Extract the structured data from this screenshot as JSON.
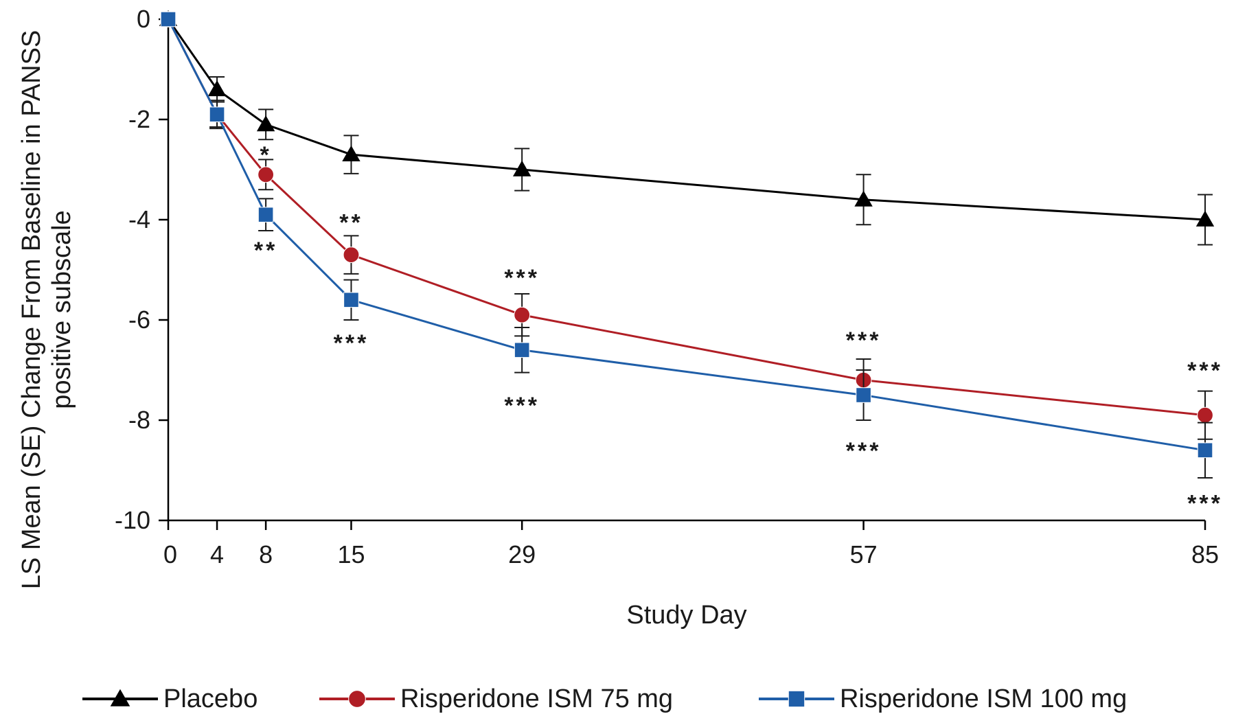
{
  "chart_data": {
    "type": "line",
    "xlabel": "Study Day",
    "ylabel_lines": [
      "LS Mean (SE) Change From Baseline in PANSS",
      "positive subscale"
    ],
    "x": [
      0,
      4,
      8,
      15,
      29,
      57,
      85
    ],
    "x_ticks": [
      "0",
      "4",
      "8",
      "15",
      "29",
      "57",
      "85"
    ],
    "ylim": [
      -10,
      0
    ],
    "y_ticks": [
      "0",
      "-2",
      "-4",
      "-6",
      "-8",
      "-10"
    ],
    "xlim": [
      0,
      85
    ],
    "grid": false,
    "legend_position": "bottom",
    "series": [
      {
        "name": "Placebo",
        "color": "#000000",
        "marker": "triangle",
        "values": [
          0,
          -1.4,
          -2.1,
          -2.7,
          -3.0,
          -3.6,
          -4.0
        ],
        "se": [
          0,
          0.25,
          0.3,
          0.38,
          0.42,
          0.5,
          0.5
        ]
      },
      {
        "name": "Risperidone ISM 75 mg",
        "color": "#b01e25",
        "marker": "circle",
        "values": [
          0,
          -1.9,
          -3.1,
          -4.7,
          -5.9,
          -7.2,
          -7.9
        ],
        "se": [
          0,
          0.25,
          0.3,
          0.38,
          0.42,
          0.42,
          0.48
        ]
      },
      {
        "name": "Risperidone ISM 100 mg",
        "color": "#1f5ea8",
        "marker": "square",
        "values": [
          0,
          -1.9,
          -3.9,
          -5.6,
          -6.6,
          -7.5,
          -8.6
        ],
        "se": [
          0,
          0.28,
          0.32,
          0.4,
          0.45,
          0.5,
          0.55
        ]
      }
    ],
    "annotations": [
      {
        "x": 8,
        "y": -2.7,
        "text": "*"
      },
      {
        "x": 8,
        "y": -4.6,
        "text": "**"
      },
      {
        "x": 15,
        "y": -4.05,
        "text": "**"
      },
      {
        "x": 15,
        "y": -6.45,
        "text": "***"
      },
      {
        "x": 29,
        "y": -5.15,
        "text": "***"
      },
      {
        "x": 29,
        "y": -7.7,
        "text": "***"
      },
      {
        "x": 57,
        "y": -6.4,
        "text": "***"
      },
      {
        "x": 57,
        "y": -8.6,
        "text": "***"
      },
      {
        "x": 85,
        "y": -7.0,
        "text": "***"
      },
      {
        "x": 85,
        "y": -9.65,
        "text": "***"
      }
    ]
  }
}
